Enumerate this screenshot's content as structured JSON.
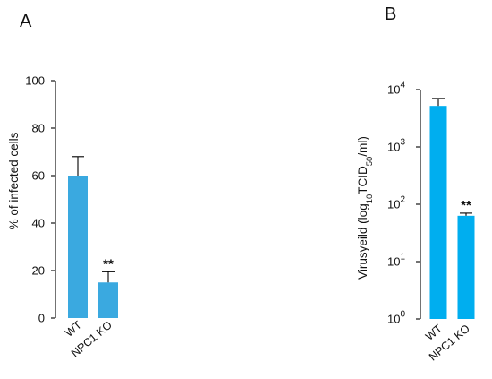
{
  "chart_data": [
    {
      "panel": "A",
      "type": "bar",
      "categories": [
        "WT",
        "NPC1 KO"
      ],
      "values": [
        60,
        15
      ],
      "errors_upper": [
        68,
        19.5
      ],
      "significance": [
        "",
        "**"
      ],
      "ylabel": "% of infected cells",
      "ylim": [
        0,
        100
      ],
      "yticks": [
        0,
        20,
        40,
        60,
        80,
        100
      ],
      "ytick_labels": [
        "0",
        "20",
        "40",
        "60",
        "80",
        "100"
      ],
      "yscale": "linear",
      "bar_color": "#3aa9e0",
      "grid": false
    },
    {
      "panel": "B",
      "type": "bar",
      "categories": [
        "WT",
        "NPC1 KO"
      ],
      "values": [
        5200,
        63
      ],
      "errors_upper": [
        7000,
        70
      ],
      "significance": [
        "",
        "**"
      ],
      "ylabel_parts": {
        "prefix": "Virusyeild (log",
        "sub1": "10",
        "mid": "TCID",
        "sub2": "50",
        "suffix": "/ml)"
      },
      "ylim": [
        1,
        10000
      ],
      "yticks": [
        1,
        10,
        100,
        1000,
        10000
      ],
      "ytick_labels": [
        {
          "base": "10",
          "exp": "0"
        },
        {
          "base": "10",
          "exp": "1"
        },
        {
          "base": "10",
          "exp": "2"
        },
        {
          "base": "10",
          "exp": "3"
        },
        {
          "base": "10",
          "exp": "4"
        }
      ],
      "yscale": "log",
      "bar_color": "#00aeef",
      "grid": false
    }
  ]
}
